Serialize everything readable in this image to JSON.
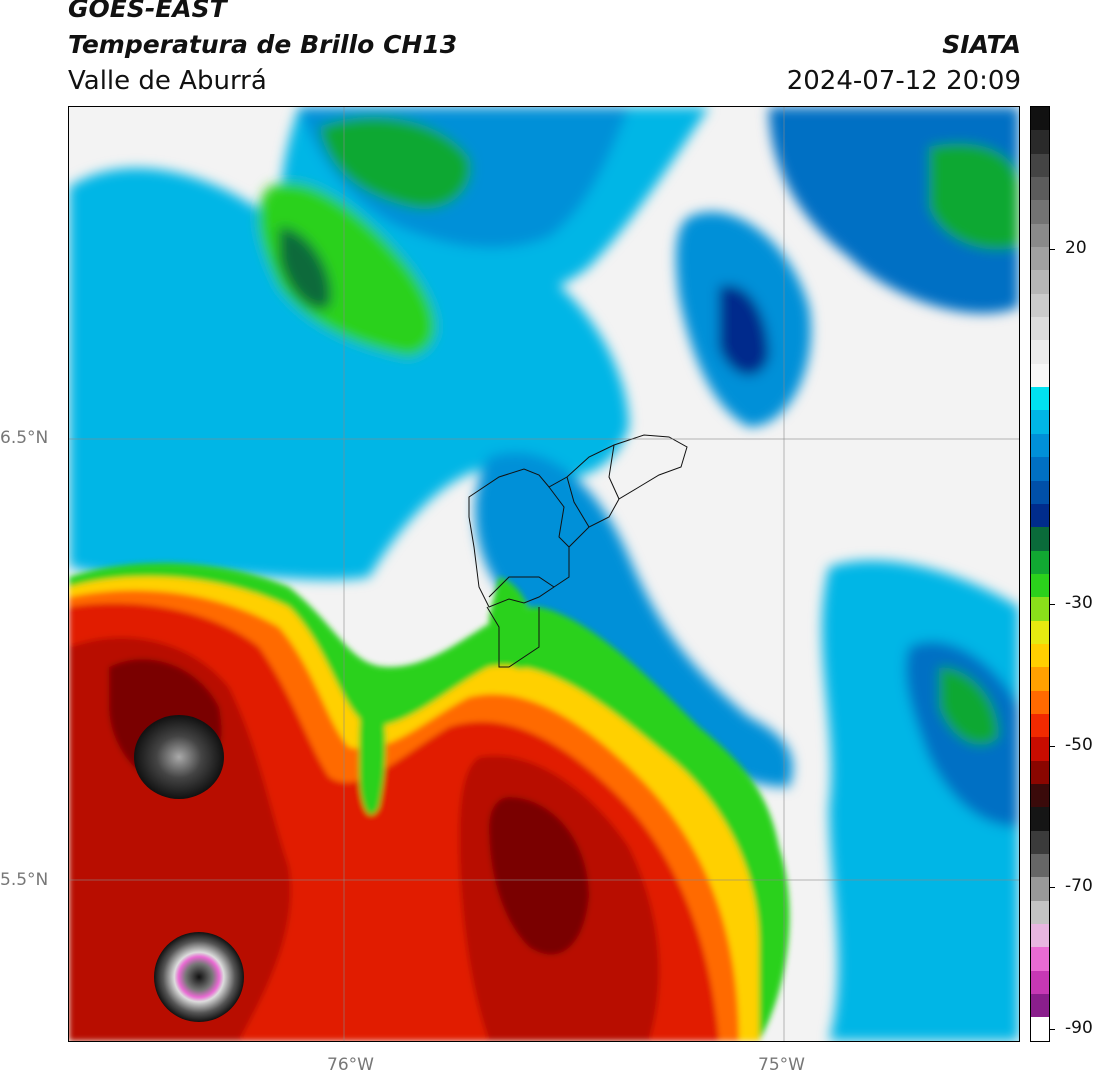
{
  "header": {
    "satellite": "GOES-EAST",
    "product": "Temperatura de Brillo CH13",
    "region": "Valle de Aburrá",
    "institution": "SIATA",
    "datetime": "2024-07-12 20:09"
  },
  "map": {
    "lat_labels": [
      "6.5°N",
      "5.5°N"
    ],
    "lon_labels": [
      "76°W",
      "75°W"
    ]
  },
  "colorbar": {
    "tick_labels": [
      "20",
      "-30",
      "-50",
      "-70",
      "-90"
    ],
    "colors_top_to_bottom": [
      "#111111",
      "#2a2a2a",
      "#444444",
      "#5c5c5c",
      "#737373",
      "#8a8a8a",
      "#a1a1a1",
      "#b7b7b7",
      "#cbcbcb",
      "#dddddd",
      "#ececec",
      "#f7f7f7",
      "#00e1f0",
      "#00b6e6",
      "#0090d8",
      "#0070c4",
      "#0050a8",
      "#002c8c",
      "#0a6b3a",
      "#11a832",
      "#2bd11c",
      "#8ae01a",
      "#e6ea10",
      "#ffd000",
      "#ffa000",
      "#ff6a00",
      "#f22a00",
      "#c80c00",
      "#8a0600",
      "#3a0a0a",
      "#151515",
      "#3b3b3b",
      "#666666",
      "#999999",
      "#c4c4c4",
      "#e7b6e0",
      "#e96bd3",
      "#c638b4",
      "#8a1e8c",
      "#ffffff"
    ]
  },
  "colors": {
    "cloud_free": "#f3f3f3",
    "cyan": "#00e1f0",
    "blue": "#0070c4",
    "navy": "#002c8c",
    "green": "#2bd11c",
    "yellow": "#e6ea10",
    "orange": "#ff6a00",
    "red": "#e11a00",
    "dark_red": "#9a0a00",
    "black": "#1a1a1a",
    "magenta": "#e96bd3"
  }
}
